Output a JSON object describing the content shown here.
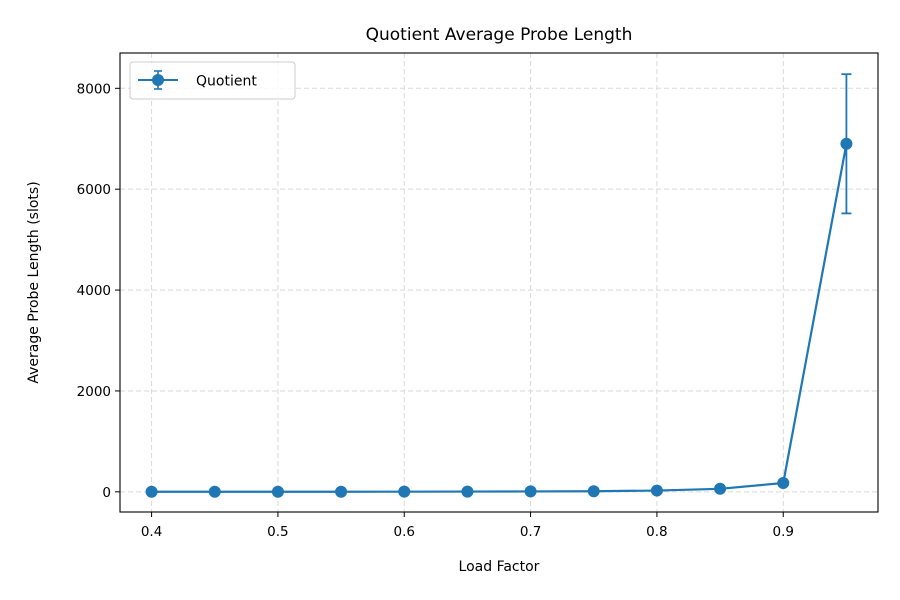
{
  "chart_data": {
    "type": "line",
    "title": "Quotient Average Probe Length",
    "xlabel": "Load Factor",
    "ylabel": "Average Probe Length (slots)",
    "xlim": [
      0.375,
      0.975
    ],
    "ylim": [
      -400,
      8700
    ],
    "x_ticks": [
      0.4,
      0.5,
      0.6,
      0.7,
      0.8,
      0.9
    ],
    "x_tick_labels": [
      "0.4",
      "0.5",
      "0.6",
      "0.7",
      "0.8",
      "0.9"
    ],
    "y_ticks": [
      0,
      2000,
      4000,
      6000,
      8000
    ],
    "y_tick_labels": [
      "0",
      "2000",
      "4000",
      "6000",
      "8000"
    ],
    "grid": true,
    "legend_position": "top-left",
    "series": [
      {
        "name": "Quotient",
        "color": "#1f77b4",
        "marker": "circle",
        "x": [
          0.4,
          0.45,
          0.5,
          0.55,
          0.6,
          0.65,
          0.7,
          0.75,
          0.8,
          0.85,
          0.9,
          0.95
        ],
        "y": [
          1,
          1,
          2,
          2,
          3,
          5,
          8,
          12,
          25,
          60,
          175,
          6900
        ],
        "yerr": [
          0,
          0,
          0,
          0,
          0,
          0,
          0,
          0,
          0,
          0,
          0,
          1380
        ]
      }
    ]
  }
}
